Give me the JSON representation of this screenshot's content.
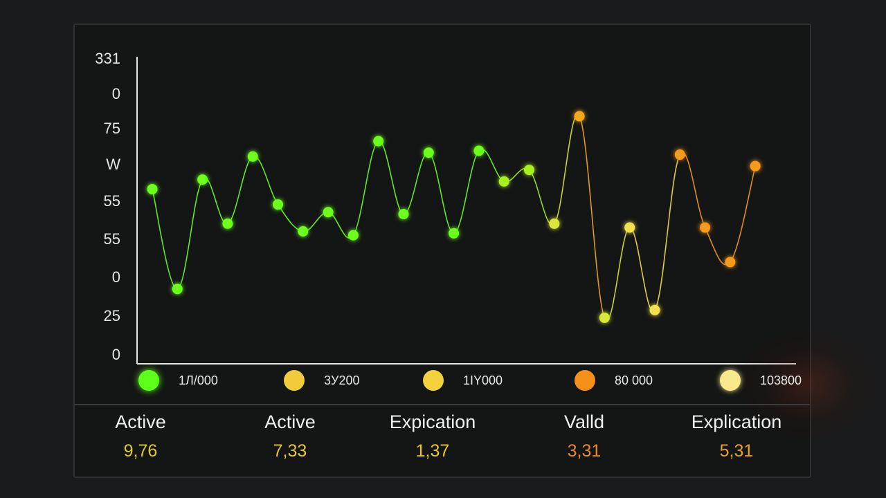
{
  "chart_data": {
    "type": "line",
    "title": "",
    "xlabel": "",
    "ylabel": "",
    "y_tick_labels": [
      "0",
      "25",
      "0",
      "55",
      "55",
      "W",
      "75",
      "0",
      "331"
    ],
    "colors": {
      "green": "#6cff1e",
      "yellow_green": "#c9e82a",
      "yellow": "#f2d84a",
      "orange": "#f59a1c"
    },
    "points": [
      {
        "y": 4.55,
        "color": "#6cff1e"
      },
      {
        "y": 1.95,
        "color": "#6cff1e"
      },
      {
        "y": 4.8,
        "color": "#6cff1e"
      },
      {
        "y": 3.65,
        "color": "#6cff1e"
      },
      {
        "y": 5.4,
        "color": "#6cff1e"
      },
      {
        "y": 4.15,
        "color": "#6cff1e"
      },
      {
        "y": 3.45,
        "color": "#6cff1e"
      },
      {
        "y": 3.95,
        "color": "#6cff1e"
      },
      {
        "y": 3.35,
        "color": "#6cff1e"
      },
      {
        "y": 5.8,
        "color": "#6cff1e"
      },
      {
        "y": 3.9,
        "color": "#6cff1e"
      },
      {
        "y": 5.5,
        "color": "#6cff1e"
      },
      {
        "y": 3.4,
        "color": "#6cff1e"
      },
      {
        "y": 5.55,
        "color": "#6cff1e"
      },
      {
        "y": 4.75,
        "color": "#a8f01e"
      },
      {
        "y": 5.05,
        "color": "#a8f01e"
      },
      {
        "y": 3.65,
        "color": "#d8e83a"
      },
      {
        "y": 6.45,
        "color": "#f5a81c"
      },
      {
        "y": 1.2,
        "color": "#d8e83a"
      },
      {
        "y": 3.55,
        "color": "#f2e050"
      },
      {
        "y": 1.4,
        "color": "#f2e050"
      },
      {
        "y": 5.45,
        "color": "#f59a1c"
      },
      {
        "y": 3.55,
        "color": "#f59a1c"
      },
      {
        "y": 2.65,
        "color": "#f59a1c"
      },
      {
        "y": 5.15,
        "color": "#f59a1c"
      }
    ],
    "ylim": [
      0,
      8
    ]
  },
  "legend": [
    {
      "label": "1Л/000",
      "color": "#5dff1a"
    },
    {
      "label": "3У200",
      "color": "#f2cb3a"
    },
    {
      "label": "1IY000",
      "color": "#f4d23f"
    },
    {
      "label": "80 000",
      "color": "#f4901a"
    },
    {
      "label": "103800",
      "color": "#fae98a"
    }
  ],
  "stats": [
    {
      "title": "Active",
      "value": "9,76",
      "color": "#d8cc2a"
    },
    {
      "title": "Active",
      "value": "7,33",
      "color": "#e8c52a"
    },
    {
      "title": "Expication",
      "value": "1,37",
      "color": "#e8c52a"
    },
    {
      "title": "Valld",
      "value": "3,31",
      "color": "#e88a2a"
    },
    {
      "title": "Explication",
      "value": "5,31",
      "color": "#e8a02a"
    }
  ]
}
